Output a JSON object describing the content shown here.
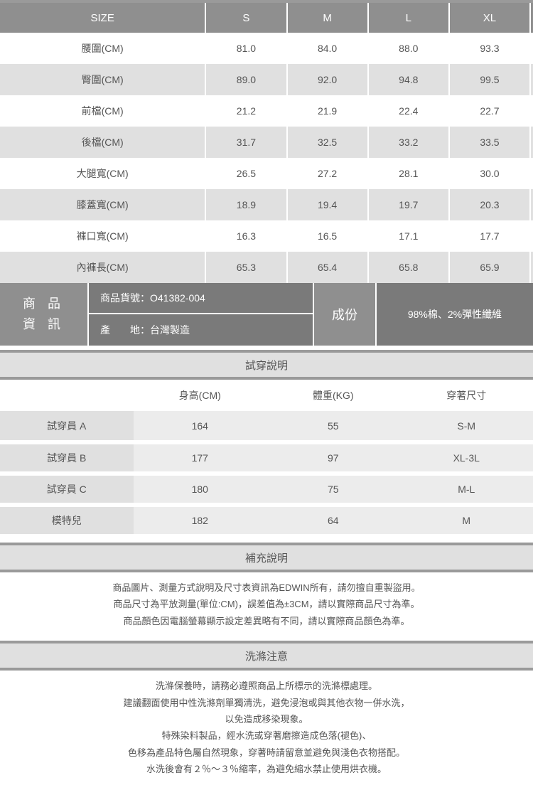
{
  "colors": {
    "header_bg": "#8f8f8f",
    "header_text": "#ffffff",
    "row_alt_bg": "#e0e0e0",
    "row_bg": "#ffffff",
    "info_bg": "#7a7a7a",
    "border_top": "#9a9a9a",
    "text": "#555555",
    "fit_row_bg": "#ececec"
  },
  "size_table": {
    "headers": [
      "SIZE",
      "S",
      "M",
      "L",
      "XL",
      ""
    ],
    "rows": [
      {
        "label": "腰圍(CM)",
        "values": [
          "81.0",
          "84.0",
          "88.0",
          "93.3",
          ""
        ]
      },
      {
        "label": "臀圍(CM)",
        "values": [
          "89.0",
          "92.0",
          "94.8",
          "99.5",
          ""
        ]
      },
      {
        "label": "前檔(CM)",
        "values": [
          "21.2",
          "21.9",
          "22.4",
          "22.7",
          ""
        ]
      },
      {
        "label": "後檔(CM)",
        "values": [
          "31.7",
          "32.5",
          "33.2",
          "33.5",
          ""
        ]
      },
      {
        "label": "大腿寬(CM)",
        "values": [
          "26.5",
          "27.2",
          "28.1",
          "30.0",
          ""
        ]
      },
      {
        "label": "膝蓋寬(CM)",
        "values": [
          "18.9",
          "19.4",
          "19.7",
          "20.3",
          ""
        ]
      },
      {
        "label": "褲口寬(CM)",
        "values": [
          "16.3",
          "16.5",
          "17.1",
          "17.7",
          ""
        ]
      },
      {
        "label": "內褲長(CM)",
        "values": [
          "65.3",
          "65.4",
          "65.8",
          "65.9",
          ""
        ]
      }
    ]
  },
  "product_info": {
    "left_label": "商 品\n資 訊",
    "sku_label": "商品貨號：",
    "sku_value": "O41382-004",
    "origin_label": "產　　地：",
    "origin_value": "台灣製造",
    "composition_label": "成份",
    "composition_value": "98%棉、2%彈性纖維"
  },
  "fit_section": {
    "title": "試穿說明",
    "headers": [
      "",
      "身高(CM)",
      "體重(KG)",
      "穿著尺寸"
    ],
    "rows": [
      {
        "label": "試穿員 A",
        "height": "164",
        "weight": "55",
        "size": "S-M"
      },
      {
        "label": "試穿員 B",
        "height": "177",
        "weight": "97",
        "size": "XL-3L"
      },
      {
        "label": "試穿員 C",
        "height": "180",
        "weight": "75",
        "size": "M-L"
      },
      {
        "label": "模特兒",
        "height": "182",
        "weight": "64",
        "size": "M"
      }
    ]
  },
  "supplement": {
    "title": "補充說明",
    "lines": [
      "商品圖片、測量方式說明及尺寸表資訊為EDWIN所有，請勿擅自重製盜用。",
      "商品尺寸為平放測量(單位:CM)，誤差值為±3CM，請以實際商品尺寸為準。",
      "商品顏色因電腦螢幕顯示設定差異略有不同，請以實際商品顏色為準。"
    ]
  },
  "wash": {
    "title": "洗滌注意",
    "lines": [
      "洗滌保養時，請務必遵照商品上所標示的洗滌標處理。",
      "建議翻面使用中性洗滌劑單獨清洗，避免浸泡或與其他衣物一併水洗，",
      "以免造成移染現象。",
      "特殊染料製品，經水洗或穿著磨擦造成色落(褪色)、",
      "色移為產品特色屬自然現象，穿著時請留意並避免與淺色衣物搭配。",
      "水洗後會有２％～３％縮率，為避免縮水禁止使用烘衣機。"
    ]
  }
}
